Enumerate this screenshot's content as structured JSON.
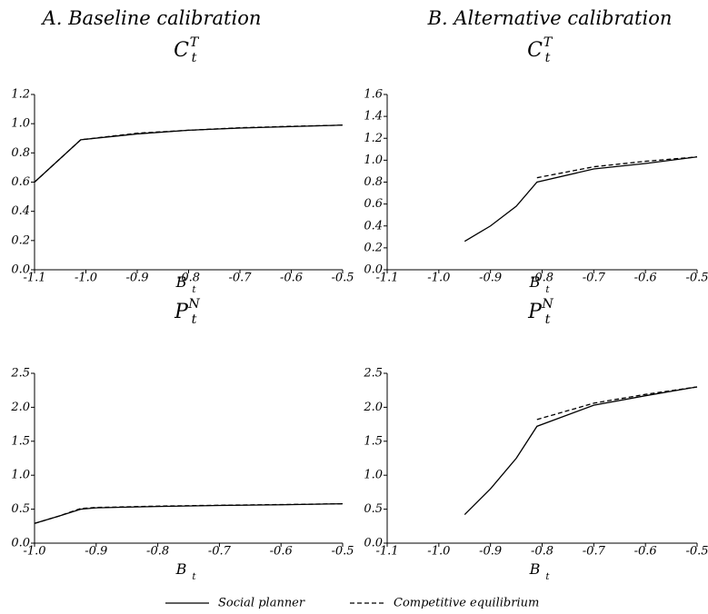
{
  "column_titles": [
    "A. Baseline calibration",
    "B. Alternative calibration"
  ],
  "legend": [
    {
      "name": "Social planner",
      "style": "solid"
    },
    {
      "name": "Competitive equilibrium",
      "style": "dashed"
    }
  ],
  "chart_data": [
    {
      "type": "line",
      "title": {
        "base": "C",
        "sub": "t",
        "sup": "T"
      },
      "x_label": {
        "base": "B",
        "sub": "t"
      },
      "xlim": [
        -1.1,
        -0.5
      ],
      "xticks": [
        -1.1,
        {
          "value": -1.0,
          "label": "-1.0"
        },
        -0.9,
        -0.8,
        -0.7,
        -0.6,
        -0.5
      ],
      "ylim": [
        0,
        1.2
      ],
      "yticks": [
        {
          "value": 0,
          "label": "0.0"
        },
        0.2,
        0.4,
        0.6,
        0.8,
        {
          "value": 1,
          "label": "1.0"
        },
        1.2
      ],
      "series": [
        {
          "style": "solid",
          "color": "#000000",
          "x": [
            -1.1,
            -1.01,
            -0.9,
            -0.8,
            -0.7,
            -0.6,
            -0.5
          ],
          "values": [
            0.6,
            0.89,
            0.93,
            0.955,
            0.97,
            0.98,
            0.99
          ]
        },
        {
          "style": "dashed",
          "color": "#000000",
          "x": [
            -1.1,
            -1.01,
            -0.9,
            -0.8,
            -0.7,
            -0.6,
            -0.5
          ],
          "values": [
            0.6,
            0.89,
            0.935,
            0.955,
            0.972,
            0.982,
            0.99
          ]
        }
      ]
    },
    {
      "type": "line",
      "title": {
        "base": "C",
        "sub": "t",
        "sup": "T"
      },
      "x_label": {
        "base": "B",
        "sub": "t"
      },
      "xlim": [
        -1.1,
        -0.5
      ],
      "xticks": [
        -1.1,
        {
          "value": -1.0,
          "label": "-1.0"
        },
        -0.9,
        -0.8,
        -0.7,
        -0.6,
        -0.5
      ],
      "ylim": [
        0,
        1.6
      ],
      "yticks": [
        {
          "value": 0,
          "label": "0.0"
        },
        0.2,
        0.4,
        0.6,
        0.8,
        {
          "value": 1,
          "label": "1.0"
        },
        1.2,
        1.4,
        1.6
      ],
      "series": [
        {
          "style": "solid",
          "color": "#000000",
          "x": [
            -0.95,
            -0.9,
            -0.85,
            -0.81,
            -0.7,
            -0.6,
            -0.5
          ],
          "values": [
            0.26,
            0.4,
            0.58,
            0.8,
            0.92,
            0.97,
            1.03
          ]
        },
        {
          "style": "dashed",
          "color": "#000000",
          "x": [
            -0.81,
            -0.7,
            -0.6,
            -0.5
          ],
          "values": [
            0.84,
            0.94,
            0.99,
            1.03
          ]
        }
      ]
    },
    {
      "type": "line",
      "title": {
        "base": "P",
        "sub": "t",
        "sup": "N"
      },
      "x_label": {
        "base": "B",
        "sub": "t"
      },
      "xlim": [
        -1.0,
        -0.5
      ],
      "xticks": [
        {
          "value": -1.0,
          "label": "-1.0"
        },
        -0.9,
        -0.8,
        -0.7,
        -0.6,
        -0.5
      ],
      "ylim": [
        0,
        2.5
      ],
      "yticks": [
        {
          "value": 0,
          "label": "0.0"
        },
        0.5,
        {
          "value": 1,
          "label": "1.0"
        },
        1.5,
        {
          "value": 2,
          "label": "2.0"
        },
        2.5
      ],
      "series": [
        {
          "style": "solid",
          "color": "#000000",
          "x": [
            -1.0,
            -0.96,
            -0.925,
            -0.9,
            -0.8,
            -0.7,
            -0.6,
            -0.5
          ],
          "values": [
            0.29,
            0.4,
            0.5,
            0.52,
            0.54,
            0.555,
            0.565,
            0.58
          ]
        },
        {
          "style": "dashed",
          "color": "#000000",
          "x": [
            -1.0,
            -0.96,
            -0.925,
            -0.9,
            -0.8,
            -0.7,
            -0.6,
            -0.5
          ],
          "values": [
            0.29,
            0.4,
            0.51,
            0.525,
            0.545,
            0.558,
            0.568,
            0.58
          ]
        }
      ]
    },
    {
      "type": "line",
      "title": {
        "base": "P",
        "sub": "t",
        "sup": "N"
      },
      "x_label": {
        "base": "B",
        "sub": "t"
      },
      "xlim": [
        -1.1,
        -0.5
      ],
      "xticks": [
        -1.1,
        {
          "value": -1.0,
          "label": "-1.0"
        },
        -0.9,
        -0.8,
        -0.7,
        -0.6,
        -0.5
      ],
      "ylim": [
        0,
        2.5
      ],
      "yticks": [
        {
          "value": 0,
          "label": "0.0"
        },
        0.5,
        {
          "value": 1,
          "label": "1.0"
        },
        1.5,
        {
          "value": 2,
          "label": "2.0"
        },
        2.5
      ],
      "series": [
        {
          "style": "solid",
          "color": "#000000",
          "x": [
            -0.95,
            -0.9,
            -0.85,
            -0.81,
            -0.7,
            -0.6,
            -0.5
          ],
          "values": [
            0.42,
            0.8,
            1.25,
            1.72,
            2.03,
            2.17,
            2.3
          ]
        },
        {
          "style": "dashed",
          "color": "#000000",
          "x": [
            -0.81,
            -0.7,
            -0.6,
            -0.5
          ],
          "values": [
            1.82,
            2.06,
            2.19,
            2.3
          ]
        }
      ]
    }
  ]
}
